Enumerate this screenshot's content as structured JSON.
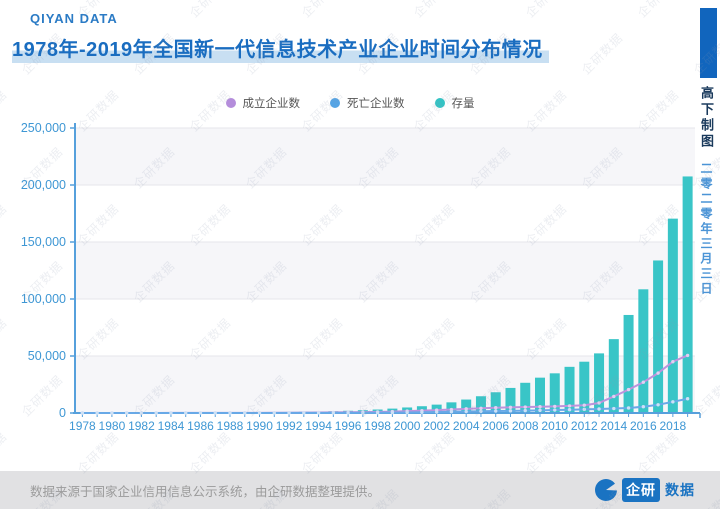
{
  "brand": "QIYAN DATA",
  "title": "1978年-2019年全国新一代信息技术产业企业时间分布情况",
  "watermark": "企研数据",
  "side_note": {
    "author": "高下制图",
    "date": "二零二零年三月三日"
  },
  "legend": [
    {
      "label": "成立企业数",
      "color": "#b48ddb"
    },
    {
      "label": "死亡企业数",
      "color": "#55a4e5"
    },
    {
      "label": "存量",
      "color": "#33c3c4"
    }
  ],
  "footer": {
    "source": "数据来源于国家企业信用信息公示系统，由企研数据整理提供。",
    "logo_primary": "企研",
    "logo_secondary": "数据"
  },
  "colors": {
    "axis": "#56a0dc",
    "tick_label": "#3e97d4",
    "grid": "#e6e6eb",
    "band": "#f6f6f9"
  },
  "chart_data": {
    "type": "bar+line",
    "title": "1978年-2019年全国新一代信息技术产业企业时间分布情况",
    "xlabel": "",
    "ylabel": "",
    "ylim": [
      0,
      250000
    ],
    "y_ticks": [
      0,
      50000,
      100000,
      150000,
      200000,
      250000
    ],
    "grid": true,
    "legend_position": "top",
    "x": [
      1978,
      1979,
      1980,
      1981,
      1982,
      1983,
      1984,
      1985,
      1986,
      1987,
      1988,
      1989,
      1990,
      1991,
      1992,
      1993,
      1994,
      1995,
      1996,
      1997,
      1998,
      1999,
      2000,
      2001,
      2002,
      2003,
      2004,
      2005,
      2006,
      2007,
      2008,
      2009,
      2010,
      2011,
      2012,
      2013,
      2014,
      2015,
      2016,
      2017,
      2018,
      2019
    ],
    "x_label_every": 2,
    "series": [
      {
        "name": "成立企业数",
        "type": "line",
        "color": "#bd93dd",
        "dot_color": "#e2d0f2",
        "values": [
          20,
          20,
          25,
          30,
          35,
          45,
          55,
          65,
          80,
          95,
          110,
          130,
          155,
          185,
          250,
          340,
          430,
          520,
          620,
          760,
          950,
          1250,
          1650,
          2050,
          2550,
          3050,
          3650,
          4150,
          4650,
          4950,
          5250,
          5500,
          5800,
          6200,
          6800,
          8800,
          14500,
          20500,
          27000,
          35000,
          45000,
          50500
        ]
      },
      {
        "name": "死亡企业数",
        "type": "line",
        "color": "#68a9e7",
        "dot_color": "#cde1f6",
        "values": [
          5,
          5,
          5,
          10,
          10,
          10,
          15,
          15,
          20,
          25,
          30,
          35,
          40,
          50,
          60,
          75,
          90,
          110,
          140,
          190,
          260,
          340,
          480,
          650,
          850,
          1050,
          1300,
          1500,
          1700,
          1900,
          2100,
          2350,
          2600,
          2900,
          3200,
          3500,
          3900,
          4400,
          5500,
          7200,
          9800,
          12500
        ]
      },
      {
        "name": "存量",
        "type": "bar",
        "color": "#39c5c7",
        "values": [
          50,
          60,
          80,
          100,
          130,
          160,
          210,
          260,
          320,
          390,
          460,
          540,
          630,
          740,
          880,
          1050,
          1270,
          1550,
          1950,
          2450,
          3050,
          3850,
          4850,
          5950,
          7350,
          9350,
          11800,
          14700,
          18200,
          22000,
          26500,
          31000,
          34800,
          40500,
          45000,
          52300,
          64800,
          86000,
          108500,
          133800,
          170500,
          207500
        ]
      }
    ]
  }
}
